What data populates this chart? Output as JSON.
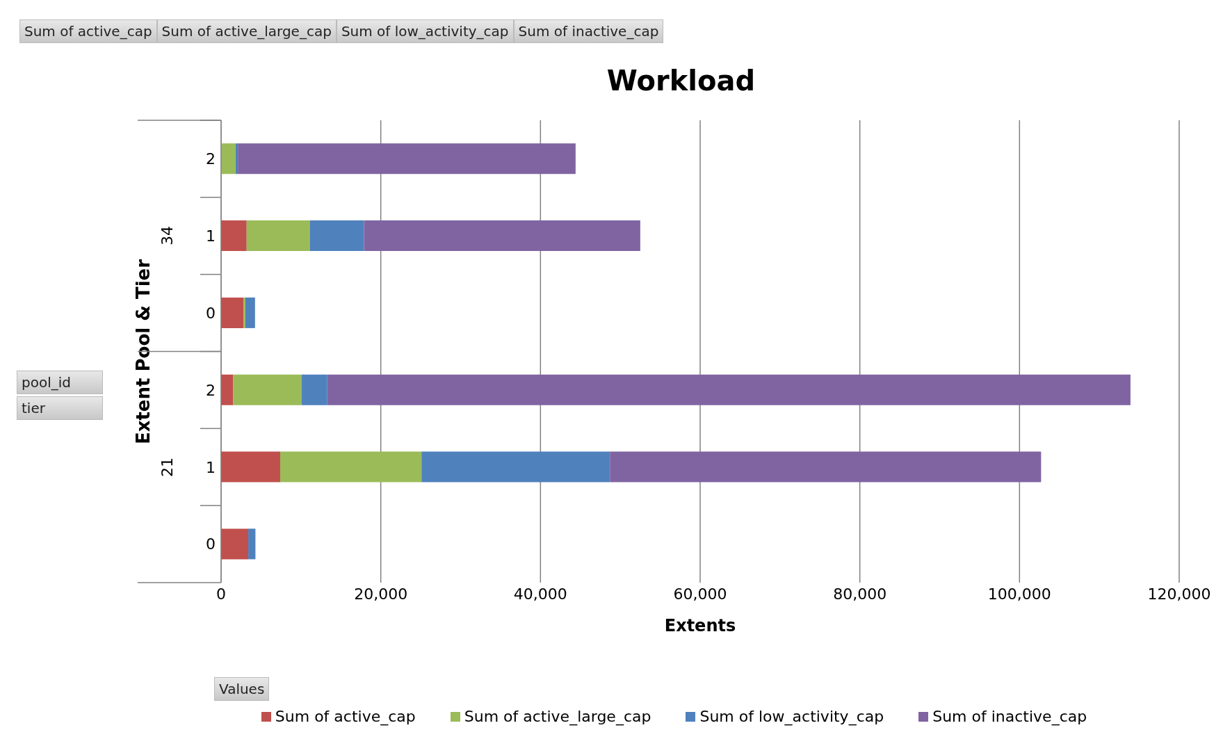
{
  "chart_data": {
    "type": "bar",
    "orientation": "horizontal",
    "stacked": true,
    "title": "Workload",
    "xlabel": "Extents",
    "ylabel": "Extent Pool & Tier",
    "categories": [
      "2",
      "1",
      "0",
      "2",
      "1",
      "0"
    ],
    "series": [
      {
        "name": "Sum of active_cap",
        "color": "#c0504d",
        "values": [
          0,
          3200,
          2800,
          1500,
          7400,
          3400
        ]
      },
      {
        "name": "Sum of active_large_cap",
        "color": "#9bbb59",
        "values": [
          1800,
          7900,
          250,
          8600,
          17700,
          0
        ]
      },
      {
        "name": "Sum of low_activity_cap",
        "color": "#4f81bd",
        "values": [
          300,
          6800,
          1200,
          3200,
          23600,
          900
        ]
      },
      {
        "name": "Sum of inactive_cap",
        "color": "#8064a2",
        "values": [
          42300,
          34600,
          0,
          100600,
          54000,
          0
        ]
      }
    ],
    "xlim": [
      0,
      120000
    ],
    "xticks": [
      {
        "value": 0,
        "label": "0"
      },
      {
        "value": 20000,
        "label": "20,000"
      },
      {
        "value": 40000,
        "label": "40,000"
      },
      {
        "value": 60000,
        "label": "60,000"
      },
      {
        "value": 80000,
        "label": "80,000"
      },
      {
        "value": 100000,
        "label": "100,000"
      },
      {
        "value": 120000,
        "label": "120,000"
      }
    ],
    "grid": "x",
    "legend": "bottom",
    "annotations": [
      "Sum of active_cap",
      "Sum of active_large_cap",
      "Sum of low_activity_cap",
      "Sum of inactive_cap",
      "pool_id",
      "tier",
      "Values",
      "34",
      "21"
    ]
  }
}
